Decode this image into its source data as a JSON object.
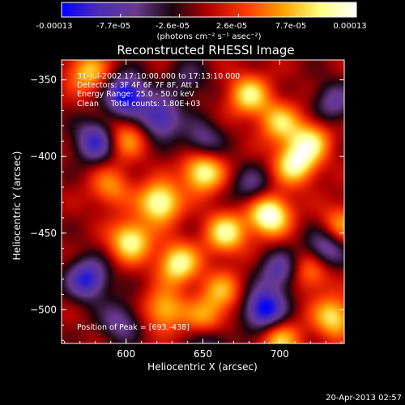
{
  "colorbar": {
    "ticks": [
      "-0.00013",
      "-7.7e-05",
      "-2.6e-05",
      "2.6e-05",
      "7.7e-05",
      "0.00013"
    ],
    "unit": "(photons cm⁻² s⁻¹ asec⁻²)",
    "colors": [
      "#0000ff",
      "#4b2db4",
      "#6a3a8f",
      "#1a0510",
      "#b40000",
      "#ff3a00",
      "#ffa000",
      "#ffff80",
      "#ffffff"
    ]
  },
  "chart_data": {
    "type": "heatmap",
    "title": "Reconstructed RHESSI Image",
    "xlabel": "Heliocentric X (arcsec)",
    "ylabel": "Heliocentric Y (arcsec)",
    "xlim": [
      558,
      742
    ],
    "ylim": [
      -522,
      -337
    ],
    "x_ticks": [
      {
        "value": 600,
        "label": "600"
      },
      {
        "value": 650,
        "label": "650"
      },
      {
        "value": 700,
        "label": "700"
      }
    ],
    "y_ticks": [
      {
        "value": -350,
        "label": "−350"
      },
      {
        "value": -400,
        "label": "−400"
      },
      {
        "value": -450,
        "label": "−450"
      },
      {
        "value": -500,
        "label": "−500"
      }
    ],
    "value_range": [
      -0.00013,
      0.00013
    ],
    "bright_sources": [
      {
        "x": 693,
        "y": -438,
        "amp": 1.0
      },
      {
        "x": 622,
        "y": -430,
        "amp": 0.9
      },
      {
        "x": 650,
        "y": -410,
        "amp": 0.85
      },
      {
        "x": 603,
        "y": -455,
        "amp": 0.8
      },
      {
        "x": 634,
        "y": -470,
        "amp": 0.8
      },
      {
        "x": 665,
        "y": -450,
        "amp": 0.75
      },
      {
        "x": 710,
        "y": -405,
        "amp": 0.8
      },
      {
        "x": 720,
        "y": -390,
        "amp": 0.65
      },
      {
        "x": 680,
        "y": -360,
        "amp": 0.7
      },
      {
        "x": 700,
        "y": -378,
        "amp": 0.6
      },
      {
        "x": 575,
        "y": -345,
        "amp": 0.6
      },
      {
        "x": 600,
        "y": -388,
        "amp": 0.5
      },
      {
        "x": 625,
        "y": -500,
        "amp": 0.6
      },
      {
        "x": 652,
        "y": -507,
        "amp": 0.55
      },
      {
        "x": 700,
        "y": -520,
        "amp": 0.6
      },
      {
        "x": 735,
        "y": -505,
        "amp": 0.7
      },
      {
        "x": 720,
        "y": -475,
        "amp": 0.5
      },
      {
        "x": 662,
        "y": -488,
        "amp": 0.5
      },
      {
        "x": 590,
        "y": -420,
        "amp": 0.45
      },
      {
        "x": 740,
        "y": -445,
        "amp": 0.5
      }
    ],
    "dark_sources": [
      {
        "x": 600,
        "y": -360,
        "amp": -0.9
      },
      {
        "x": 622,
        "y": -375,
        "amp": -0.7
      },
      {
        "x": 580,
        "y": -390,
        "amp": -0.7
      },
      {
        "x": 575,
        "y": -480,
        "amp": -0.75
      },
      {
        "x": 690,
        "y": -500,
        "amp": -0.9
      },
      {
        "x": 700,
        "y": -475,
        "amp": -0.55
      },
      {
        "x": 730,
        "y": -460,
        "amp": -0.6
      },
      {
        "x": 650,
        "y": -390,
        "amp": -0.45
      },
      {
        "x": 735,
        "y": -365,
        "amp": -0.45
      },
      {
        "x": 655,
        "y": -520,
        "amp": -0.45
      },
      {
        "x": 596,
        "y": -508,
        "amp": -0.45
      },
      {
        "x": 682,
        "y": -420,
        "amp": -0.4
      },
      {
        "x": 640,
        "y": -350,
        "amp": -0.3
      }
    ],
    "peak": {
      "x": 693,
      "y": -438
    }
  },
  "overlay": {
    "line1": "31-Jul-2002 17:10:00.000 to 17:13:10.000",
    "line2": "Detectors: 3F 4F 6F 7F 8F, Att 1",
    "line3": "Energy Range: 25.0 - 50.0 keV",
    "line4": "Clean     Total counts: 1.80E+03",
    "peak_text": "Position of Peak = [693,-438]"
  },
  "footer": {
    "date": "20-Apr-2013 02:57"
  }
}
